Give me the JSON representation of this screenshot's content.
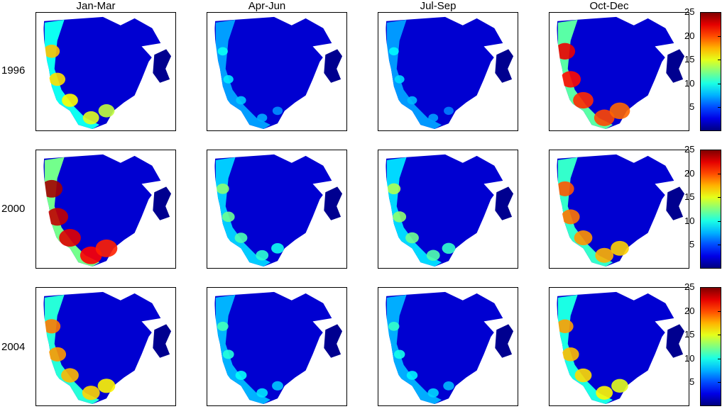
{
  "chart_data": {
    "type": "heatmap",
    "columns": [
      "Jan-Mar",
      "Apr-Jun",
      "Jul-Sep",
      "Oct-Dec"
    ],
    "rows": [
      "1996",
      "2000",
      "2004"
    ],
    "colorbar": {
      "colormap": "jet",
      "range": [
        0,
        25
      ],
      "ticks": [
        5,
        10,
        15,
        20,
        25
      ],
      "tick_labels": [
        "5",
        "10",
        "15",
        "20",
        "25"
      ]
    },
    "panel_intensity": [
      [
        0.55,
        0.12,
        0.1,
        0.85
      ],
      [
        0.95,
        0.3,
        0.35,
        0.7
      ],
      [
        0.65,
        0.2,
        0.18,
        0.6
      ]
    ],
    "colors": {
      "ocean_low": "#00008f",
      "land": "#ffffff",
      "frame": "#000000"
    }
  }
}
